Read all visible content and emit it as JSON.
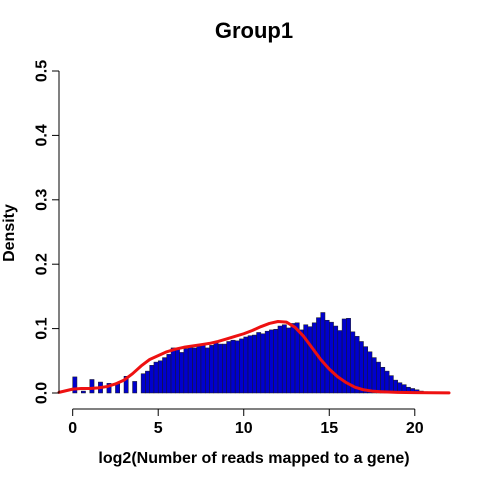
{
  "chart_data": {
    "type": "bar",
    "title": "Group1",
    "xlabel": "log2(Number of reads mapped to a gene)",
    "ylabel": "Density",
    "xlim": [
      -0.8,
      22
    ],
    "ylim": [
      0,
      0.5
    ],
    "x_ticks": [
      0,
      5,
      10,
      15,
      20
    ],
    "y_ticks": [
      0.0,
      0.1,
      0.2,
      0.3,
      0.4,
      0.5
    ],
    "x_tick_labels": [
      "0",
      "5",
      "10",
      "15",
      "20"
    ],
    "y_tick_labels": [
      "0.0",
      "0.1",
      "0.2",
      "0.3",
      "0.4",
      "0.5"
    ],
    "bin_width": 0.25,
    "bin_start": 0,
    "bin_values": [
      0.025,
      0.0,
      0.003,
      0.0,
      0.021,
      0.0,
      0.017,
      0.0,
      0.015,
      0.0,
      0.016,
      0.0,
      0.026,
      0.0,
      0.018,
      0.0,
      0.03,
      0.034,
      0.043,
      0.048,
      0.05,
      0.055,
      0.06,
      0.07,
      0.069,
      0.063,
      0.069,
      0.071,
      0.07,
      0.075,
      0.076,
      0.07,
      0.074,
      0.078,
      0.076,
      0.076,
      0.08,
      0.082,
      0.081,
      0.084,
      0.087,
      0.089,
      0.09,
      0.094,
      0.092,
      0.096,
      0.098,
      0.099,
      0.104,
      0.106,
      0.101,
      0.108,
      0.109,
      0.098,
      0.106,
      0.103,
      0.109,
      0.117,
      0.125,
      0.113,
      0.11,
      0.104,
      0.097,
      0.115,
      0.116,
      0.095,
      0.088,
      0.08,
      0.072,
      0.064,
      0.055,
      0.048,
      0.04,
      0.034,
      0.027,
      0.02,
      0.016,
      0.013,
      0.009,
      0.007,
      0.005,
      0.003,
      0.002,
      0.001,
      0.0005,
      0.0003
    ],
    "density_curve": {
      "x": [
        -0.8,
        0,
        0.5,
        1,
        1.5,
        2,
        2.5,
        3,
        3.5,
        4,
        4.5,
        5,
        5.5,
        6,
        6.5,
        7,
        7.5,
        8,
        8.5,
        9,
        9.5,
        10,
        10.5,
        11,
        11.5,
        12,
        12.5,
        13,
        13.5,
        14,
        14.5,
        15,
        15.5,
        16,
        16.5,
        17,
        17.5,
        18,
        19,
        20,
        21,
        22
      ],
      "y": [
        0.001,
        0.006,
        0.007,
        0.007,
        0.008,
        0.01,
        0.014,
        0.02,
        0.03,
        0.042,
        0.052,
        0.058,
        0.064,
        0.068,
        0.071,
        0.073,
        0.075,
        0.077,
        0.08,
        0.084,
        0.088,
        0.092,
        0.097,
        0.103,
        0.108,
        0.111,
        0.11,
        0.102,
        0.088,
        0.07,
        0.052,
        0.037,
        0.025,
        0.016,
        0.009,
        0.005,
        0.003,
        0.002,
        0.001,
        0.0005,
        0.0003,
        0.0002
      ]
    },
    "colors": {
      "bar_fill": "#0000cd",
      "curve": "#ee1111"
    },
    "grid": false
  }
}
